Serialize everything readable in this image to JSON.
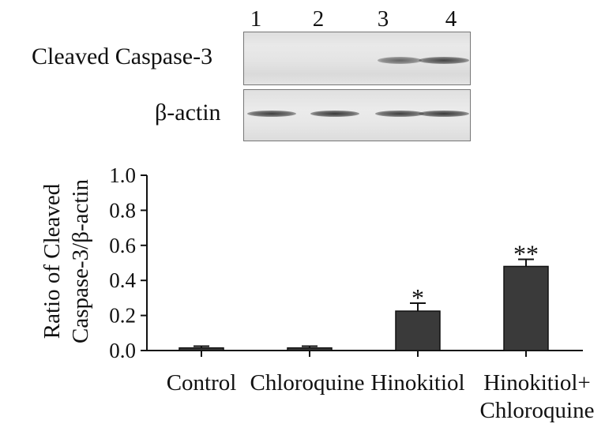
{
  "blot": {
    "lane_numbers": [
      "1",
      "2",
      "3",
      "4"
    ],
    "rows": [
      {
        "label": "Cleaved Caspase-3",
        "band_intensity": [
          0.0,
          0.0,
          0.55,
          0.85
        ]
      },
      {
        "label": "β-actin",
        "band_intensity": [
          0.9,
          0.95,
          0.9,
          0.95
        ]
      }
    ]
  },
  "chart_data": {
    "type": "bar",
    "categories": [
      "Control",
      "Chloroquine",
      "Hinokitiol",
      "Hinokitiol+\nChloroquine"
    ],
    "values": [
      0.015,
      0.015,
      0.225,
      0.48
    ],
    "errors": [
      0.01,
      0.01,
      0.045,
      0.04
    ],
    "significance": [
      "",
      "",
      "*",
      "**"
    ],
    "ylabel": "Ratio of Cleaved\nCaspase-3/β-actin",
    "xlabel": "",
    "ylim": [
      0,
      1.0
    ],
    "yticks": [
      "0.0",
      "0.2",
      "0.4",
      "0.6",
      "0.8",
      "1.0"
    ],
    "bar_color": "#3a3a3a",
    "grid": false
  }
}
